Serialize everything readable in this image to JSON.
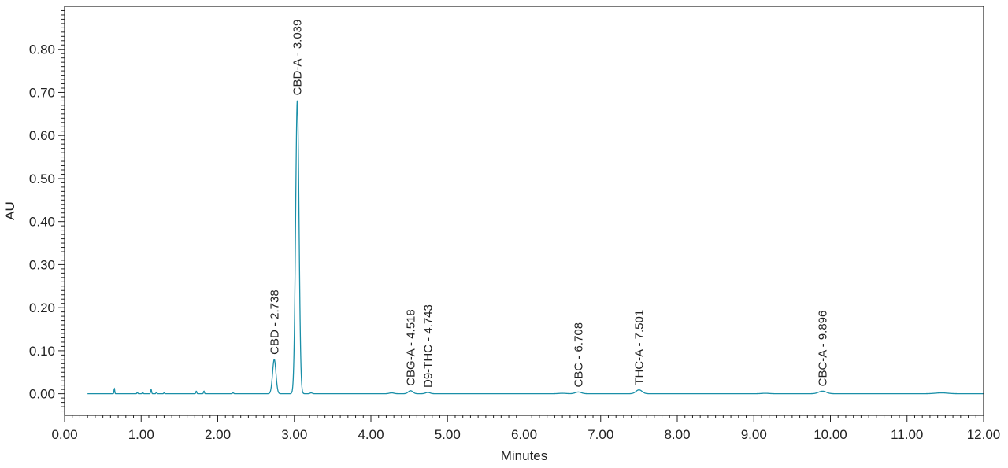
{
  "chart_data": {
    "type": "line",
    "title": "",
    "xlabel": "Minutes",
    "ylabel": "AU",
    "xlim": [
      0,
      12
    ],
    "ylim": [
      -0.05,
      0.9
    ],
    "x_ticks": [
      "0.00",
      "1.00",
      "2.00",
      "3.00",
      "4.00",
      "5.00",
      "6.00",
      "7.00",
      "8.00",
      "9.00",
      "10.00",
      "11.00",
      "12.00"
    ],
    "y_ticks": [
      "0.00",
      "0.10",
      "0.20",
      "0.30",
      "0.40",
      "0.50",
      "0.60",
      "0.70",
      "0.80"
    ],
    "grid": false,
    "line_color": "#1a8fa8",
    "baseline": 0.0,
    "peaks": [
      {
        "label": "CBD - 2.738",
        "rt": 2.738,
        "height": 0.08,
        "width": 0.022
      },
      {
        "label": "CBD-A - 3.039",
        "rt": 3.039,
        "height": 0.682,
        "width": 0.022
      },
      {
        "label": "CBG-A - 4.518",
        "rt": 4.518,
        "height": 0.007,
        "width": 0.03
      },
      {
        "label": "D9-THC - 4.743",
        "rt": 4.743,
        "height": 0.003,
        "width": 0.03
      },
      {
        "label": "CBC - 6.708",
        "rt": 6.708,
        "height": 0.004,
        "width": 0.04
      },
      {
        "label": "THC-A - 7.501",
        "rt": 7.501,
        "height": 0.009,
        "width": 0.04
      },
      {
        "label": "CBC-A - 9.896",
        "rt": 9.896,
        "height": 0.006,
        "width": 0.05
      }
    ],
    "minor_peaks": [
      {
        "rt": 0.65,
        "height": 0.012,
        "width": 0.005
      },
      {
        "rt": 0.95,
        "height": 0.003,
        "width": 0.006
      },
      {
        "rt": 1.02,
        "height": 0.003,
        "width": 0.006
      },
      {
        "rt": 1.13,
        "height": 0.01,
        "width": 0.006
      },
      {
        "rt": 1.2,
        "height": 0.003,
        "width": 0.006
      },
      {
        "rt": 1.3,
        "height": 0.002,
        "width": 0.006
      },
      {
        "rt": 1.72,
        "height": 0.006,
        "width": 0.006
      },
      {
        "rt": 1.82,
        "height": 0.006,
        "width": 0.006
      },
      {
        "rt": 2.2,
        "height": 0.002,
        "width": 0.008
      },
      {
        "rt": 3.22,
        "height": 0.002,
        "width": 0.015
      },
      {
        "rt": 4.27,
        "height": 0.002,
        "width": 0.03
      },
      {
        "rt": 6.5,
        "height": 0.001,
        "width": 0.05
      },
      {
        "rt": 9.15,
        "height": 0.001,
        "width": 0.05
      },
      {
        "rt": 11.45,
        "height": 0.002,
        "width": 0.08
      }
    ]
  }
}
